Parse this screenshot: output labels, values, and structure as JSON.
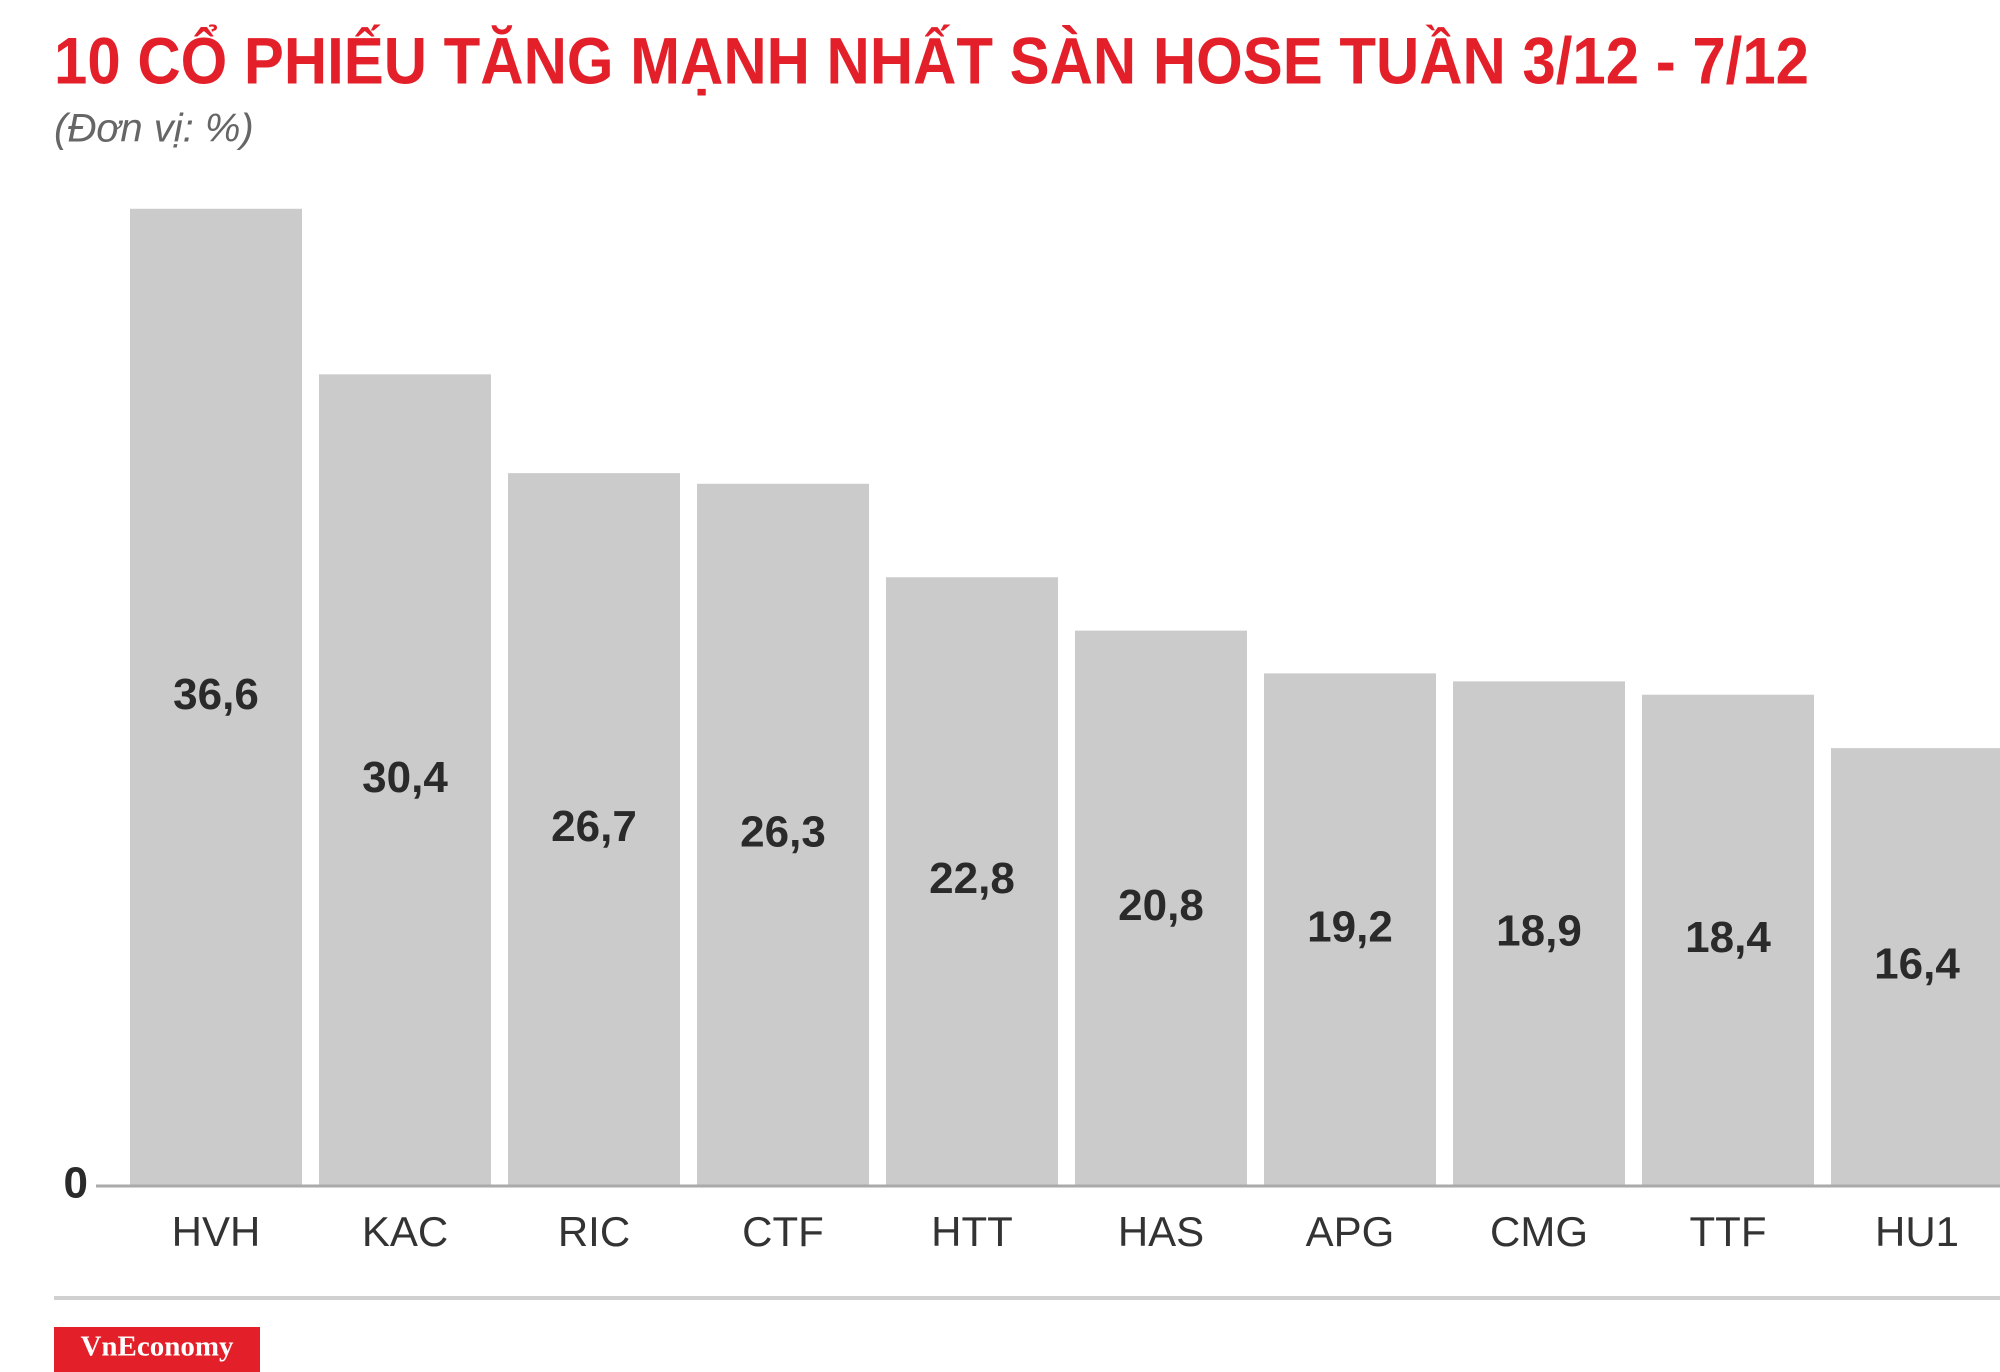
{
  "chart_data": {
    "type": "bar",
    "title": "10 CỔ PHIẾU TĂNG MẠNH NHẤT SÀN HOSE TUẦN 3/12 - 7/12",
    "subtitle": "(Đơn vị: %)",
    "categories": [
      "HVH",
      "KAC",
      "RIC",
      "CTF",
      "HTT",
      "HAS",
      "APG",
      "CMG",
      "TTF",
      "HU1"
    ],
    "values": [
      36.6,
      30.4,
      26.7,
      26.3,
      22.8,
      20.8,
      19.2,
      18.9,
      18.4,
      16.4
    ],
    "value_labels": [
      "36,6",
      "30,4",
      "26,7",
      "26,3",
      "22,8",
      "20,8",
      "19,2",
      "18,9",
      "18,4",
      "16,4"
    ],
    "color": "#cccbcb",
    "ylim": [
      0,
      40
    ],
    "yticks": [
      0
    ]
  },
  "footer": {
    "logo": "VnEconomy"
  }
}
